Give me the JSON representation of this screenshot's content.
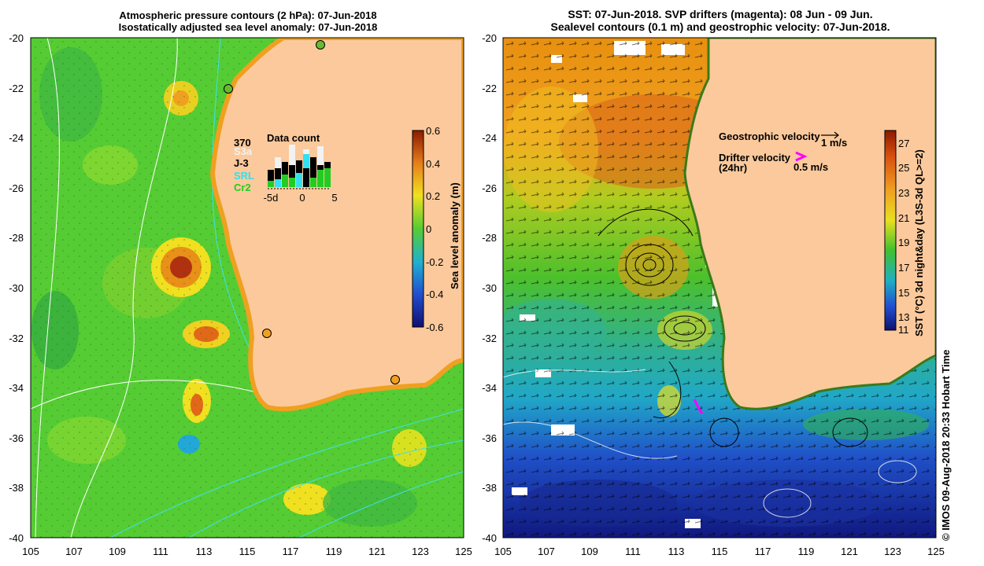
{
  "left_panel": {
    "title_line1": "Atmospheric pressure contours (2 hPa): 07-Jun-2018",
    "title_line2": "Isostatically adjusted sea level anomaly: 07-Jun-2018",
    "lon_ticks": [
      "105",
      "107",
      "109",
      "111",
      "113",
      "115",
      "117",
      "119",
      "121",
      "123",
      "125"
    ],
    "lat_ticks": [
      "-20",
      "-22",
      "-24",
      "-26",
      "-28",
      "-30",
      "-32",
      "-34",
      "-36",
      "-38",
      "-40"
    ],
    "colorbar": {
      "label": "Sea level anomaly (m)",
      "ticks": [
        "0.6",
        "0.4",
        "0.2",
        "0",
        "-0.2",
        "-0.4",
        "-0.6"
      ]
    },
    "data_count": {
      "title": "Data count",
      "total": "370",
      "missions": [
        {
          "name": "S3a",
          "color": "#f2f2f2"
        },
        {
          "name": "J-3",
          "color": "#000000"
        },
        {
          "name": "SRL",
          "color": "#33e0f0"
        },
        {
          "name": "Cr2",
          "color": "#22cc22"
        }
      ],
      "x_ticks": [
        "-5d",
        "0",
        "5"
      ]
    }
  },
  "right_panel": {
    "title_line1": "SST: 07-Jun-2018. SVP drifters (magenta): 08 Jun - 09 Jun.",
    "title_line2": "Sealevel contours (0.1 m) and geostrophic velocity: 07-Jun-2018.",
    "lon_ticks": [
      "105",
      "107",
      "109",
      "111",
      "113",
      "115",
      "117",
      "119",
      "121",
      "123",
      "125"
    ],
    "lat_ticks": [
      "-20",
      "-22",
      "-24",
      "-26",
      "-28",
      "-30",
      "-32",
      "-34",
      "-36",
      "-38",
      "-40"
    ],
    "legend": {
      "geostrophic_label": "Geostrophic velocity",
      "geostrophic_scale": "1 m/s",
      "drifter_label_line1": "Drifter velocity",
      "drifter_label_line2": "(24hr)",
      "drifter_scale": "0.5 m/s",
      "drifter_color": "#ff00ff"
    },
    "colorbar": {
      "label": "SST (°C) 3d night&day (L3S-3d QL>=2)",
      "ticks": [
        "27",
        "25",
        "23",
        "21",
        "19",
        "17",
        "15",
        "13",
        "11"
      ]
    }
  },
  "credit": "© IMOS 09-Aug-2018 20:33 Hobart Time",
  "colors": {
    "land": "#fbc99b",
    "sla_mid": "#55cc33",
    "sst_warm": "#e8901a",
    "sst_cold": "#1840b8"
  }
}
